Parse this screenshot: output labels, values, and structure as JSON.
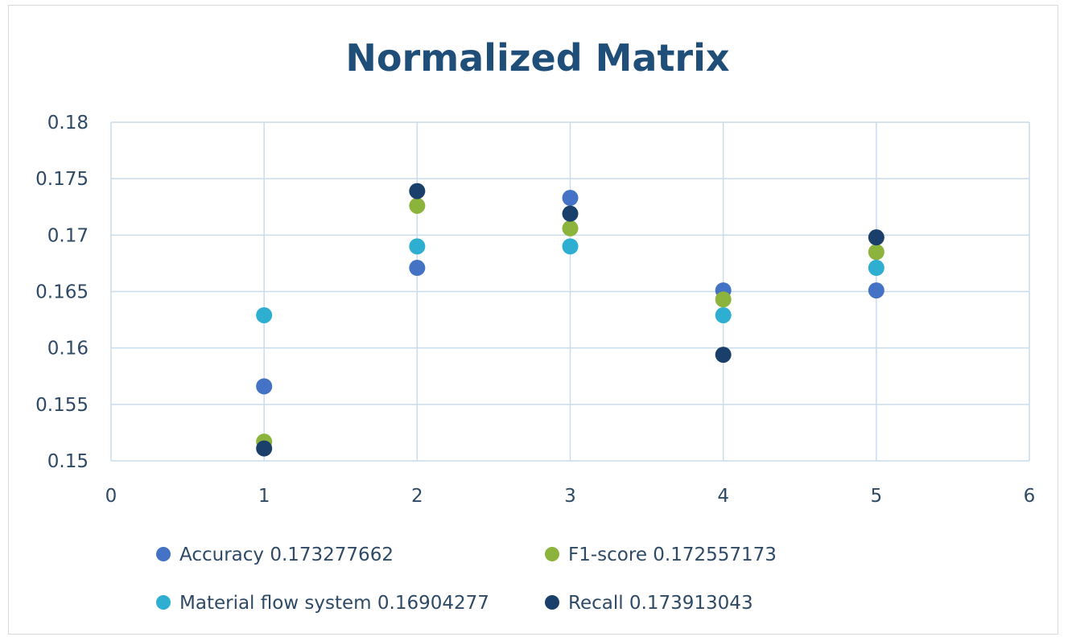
{
  "chart_data": {
    "type": "scatter",
    "title": "Normalized Matrix",
    "xlim": [
      0,
      6
    ],
    "ylim": [
      0.15,
      0.18
    ],
    "x_ticks": [
      "0",
      "1",
      "2",
      "3",
      "4",
      "5",
      "6"
    ],
    "y_ticks": [
      "0.18",
      "0.175",
      "0.17",
      "0.165",
      "0.16",
      "0.155",
      "0.15"
    ],
    "grid": true,
    "legend_position": "bottom",
    "series": [
      {
        "name": "Accuracy 0.173277662",
        "color": "#4472c4",
        "points": [
          [
            1,
            0.1566
          ],
          [
            2,
            0.1671
          ],
          [
            3,
            0.1733
          ],
          [
            4,
            0.1651
          ],
          [
            5,
            0.1651
          ]
        ]
      },
      {
        "name": "F1-score 0.172557173",
        "color": "#8cb43c",
        "points": [
          [
            1,
            0.1517
          ],
          [
            2,
            0.1726
          ],
          [
            3,
            0.1706
          ],
          [
            4,
            0.1643
          ],
          [
            5,
            0.1685
          ]
        ]
      },
      {
        "name": "Material flow system 0.16904277",
        "color": "#2eaed1",
        "points": [
          [
            1,
            0.1629
          ],
          [
            2,
            0.169
          ],
          [
            3,
            0.169
          ],
          [
            4,
            0.1629
          ],
          [
            5,
            0.1671
          ]
        ]
      },
      {
        "name": "Recall 0.173913043",
        "color": "#1a3f6b",
        "points": [
          [
            1,
            0.1511
          ],
          [
            2,
            0.1739
          ],
          [
            3,
            0.1719
          ],
          [
            4,
            0.1594
          ],
          [
            5,
            0.1698
          ]
        ]
      }
    ]
  }
}
